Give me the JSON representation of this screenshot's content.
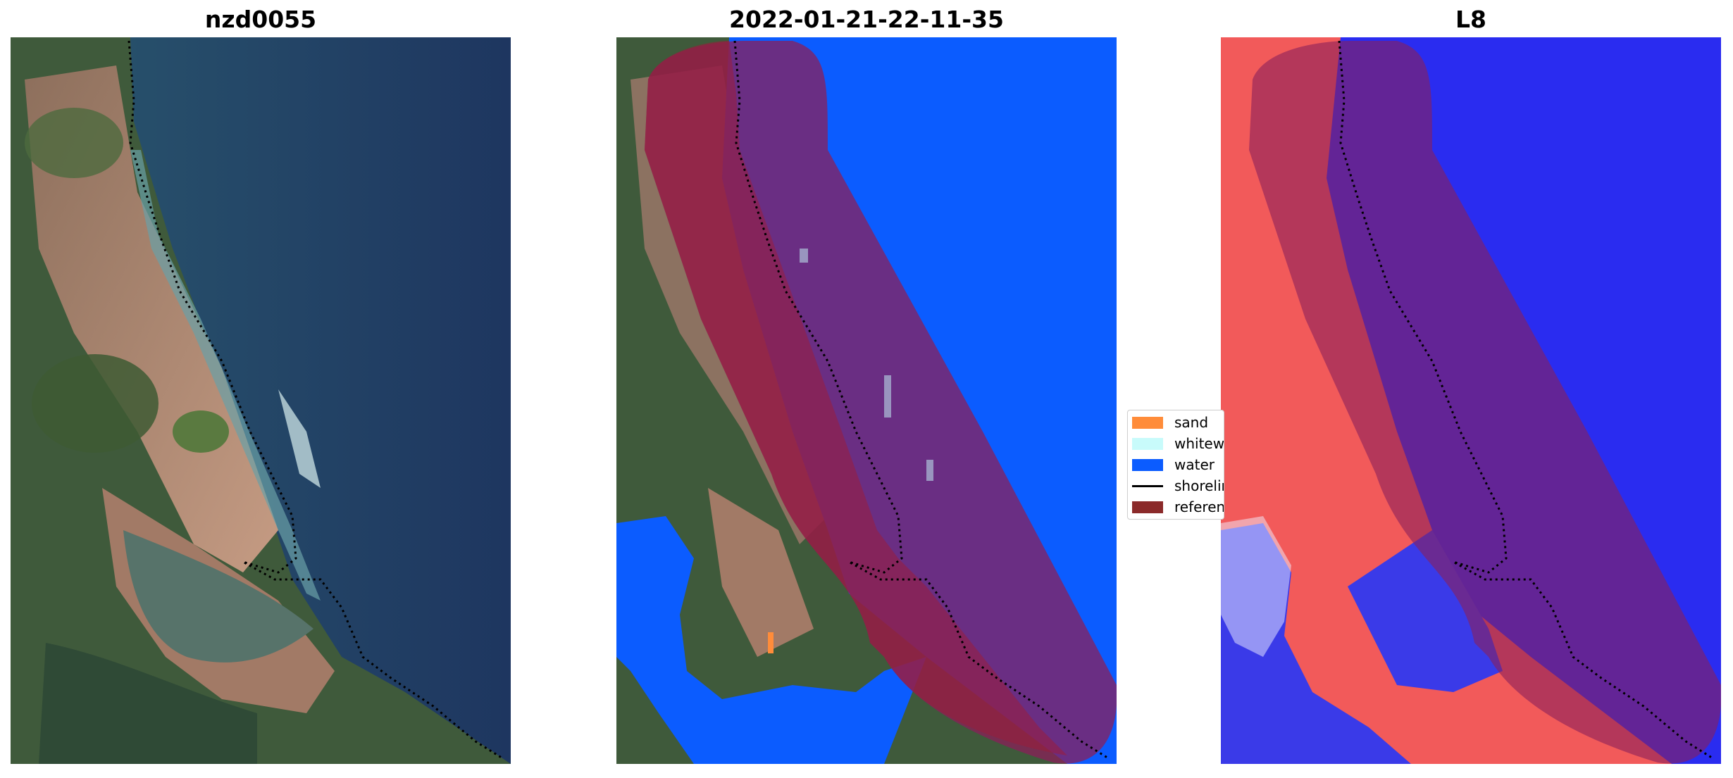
{
  "panels": [
    {
      "title": "nzd0055"
    },
    {
      "title": "2022-01-21-22-11-35"
    },
    {
      "title": "L8"
    }
  ],
  "legend": {
    "items": [
      {
        "label": "sand",
        "color": "#ff8c3a"
      },
      {
        "label": "whitewater",
        "color": "#c8fbfb"
      },
      {
        "label": "water",
        "color": "#0b5cff"
      },
      {
        "label": "shoreline",
        "color": "#000000"
      },
      {
        "label": "reference shoreline buffer",
        "color": "#8b2a2a"
      }
    ]
  },
  "colors": {
    "ocean": "#1f3d62",
    "land_green": "#3f5b3a",
    "land_tan": "#9c7a63",
    "water_class": "#0b5cff",
    "buffer": "#8b1f3a",
    "index_red": "#f04040",
    "index_blue": "#2a2cf0"
  }
}
